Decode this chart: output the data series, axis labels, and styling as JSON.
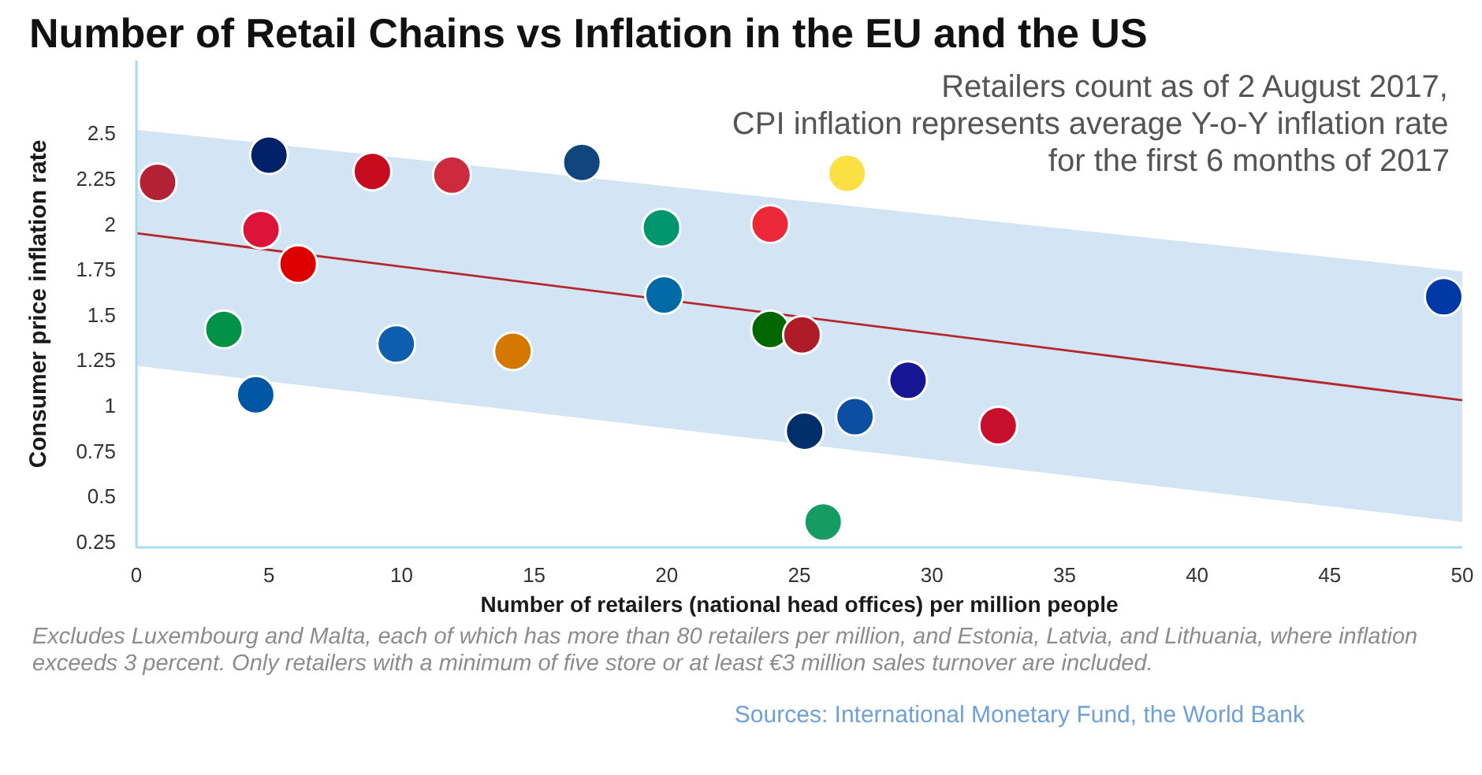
{
  "chart_data": {
    "type": "scatter",
    "title": "Number of Retail Chains vs Inflation in the EU and the US",
    "subtitle": "Retailers count as of 2 August 2017,\nCPI inflation represents average Y-o-Y inflation rate\nfor the first 6 months of 2017",
    "xlabel": "Number of retailers (national head offices) per million people",
    "ylabel": "Consumer price inflation rate",
    "annotations": [
      "Excludes Luxembourg and Malta, each of which has more than 80 retailers per million, and Estonia, Latvia, and Lithuania, where inflation exceeds 3 percent. Only retailers with a minimum of five store or at least €3 million sales turnover are included.",
      "Sources: International Monetary Fund, the World Bank"
    ],
    "xlim": [
      0,
      50
    ],
    "ylim": [
      0.22,
      2.9
    ],
    "xticks": [
      0,
      5,
      10,
      15,
      20,
      25,
      30,
      35,
      40,
      45,
      50
    ],
    "yticks": [
      0.25,
      0.5,
      0.75,
      1,
      1.25,
      1.5,
      1.75,
      2,
      2.25,
      2.5
    ],
    "series": [
      {
        "type": "line",
        "color": "#b5262e",
        "x": [
          0,
          50
        ],
        "values": [
          1.95,
          1.03
        ],
        "lower": [
          1.22,
          0.36
        ],
        "upper": [
          2.52,
          1.74
        ]
      },
      {
        "marker": "circle",
        "x": [
          0.8,
          3.3,
          4.5,
          4.7,
          5.0,
          6.1,
          8.9,
          9.8,
          11.9,
          14.2,
          16.8,
          19.8,
          19.9,
          23.9,
          23.9,
          25.1,
          25.2,
          25.9,
          26.8,
          27.1,
          29.1,
          32.5,
          49.3
        ],
        "values": [
          2.23,
          1.42,
          1.06,
          1.97,
          2.38,
          1.78,
          2.29,
          1.34,
          2.27,
          1.3,
          2.34,
          1.98,
          1.61,
          2.0,
          1.42,
          1.39,
          0.86,
          0.36,
          2.28,
          0.94,
          1.14,
          0.89,
          1.6
        ],
        "colors": [
          "#b22234",
          "#009246",
          "#0055a4",
          "#dc143c",
          "#012169",
          "#dd0000",
          "#c60b1e",
          "#0d5eaf",
          "#cd2a3e",
          "#d57800",
          "#11457e",
          "#00966e",
          "#006aa7",
          "#ed2939",
          "#006600",
          "#ae1c28",
          "#002f6c",
          "#169b62",
          "#fae042",
          "#0b4ea2",
          "#171796",
          "#c8102e",
          "#0039a6"
        ]
      }
    ]
  }
}
